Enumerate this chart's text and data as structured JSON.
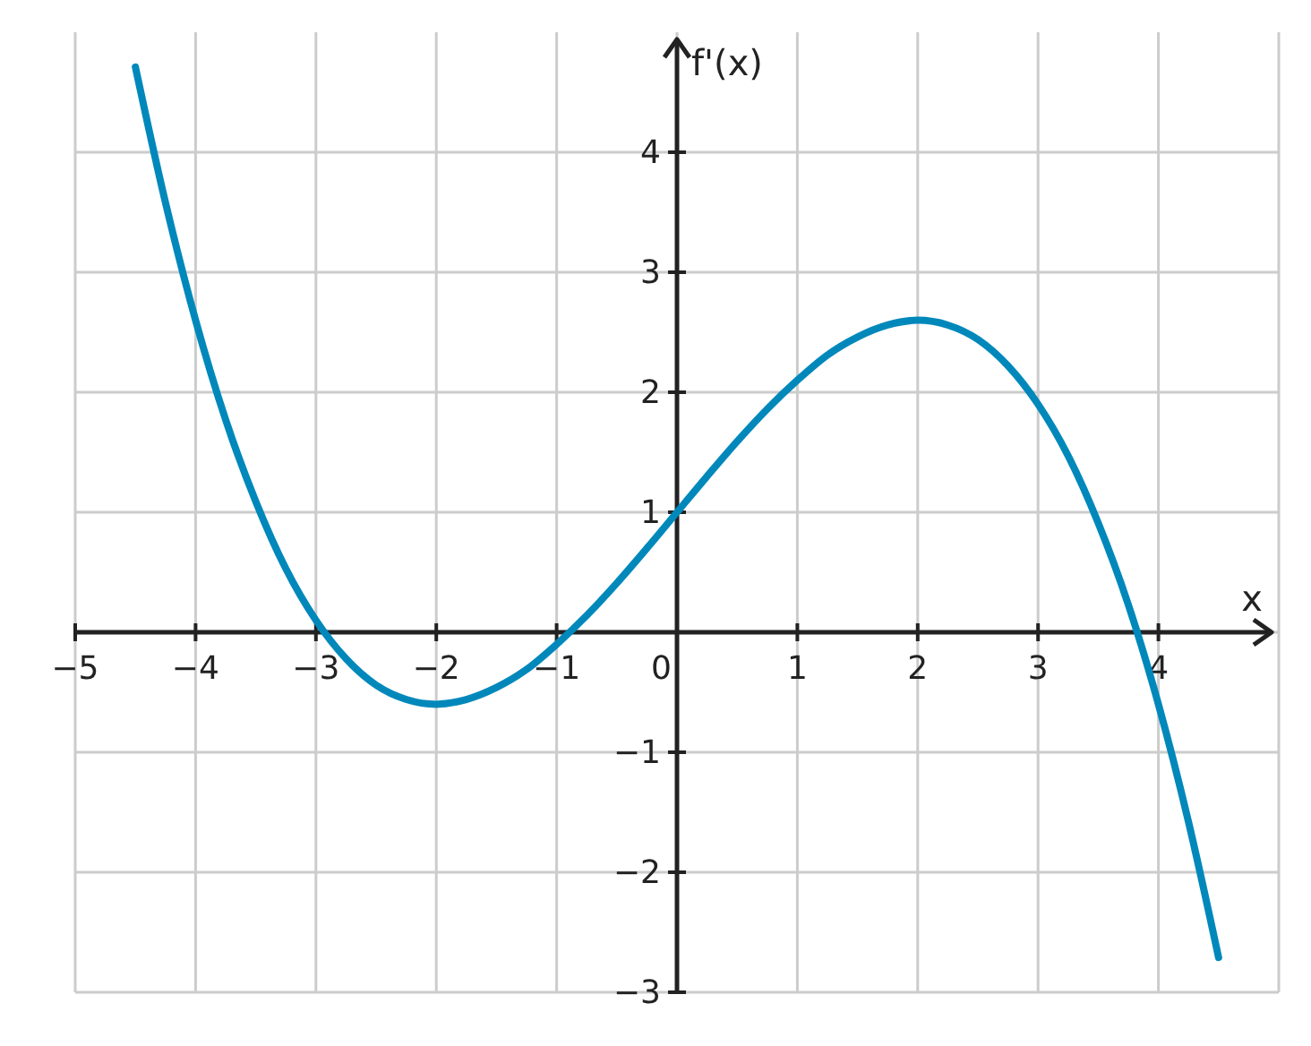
{
  "chart_data": {
    "type": "line",
    "xlabel": "x",
    "ylabel": "f'(x)",
    "x": [
      -4.5,
      -4.25,
      -4,
      -3.75,
      -3.5,
      -3.25,
      -3,
      -2.75,
      -2.5,
      -2.25,
      -2,
      -1.75,
      -1.5,
      -1.25,
      -1,
      -0.75,
      -0.5,
      -0.25,
      0,
      0.25,
      0.5,
      0.75,
      1,
      1.25,
      1.5,
      1.75,
      2,
      2.25,
      2.5,
      2.75,
      3,
      3.25,
      3.5,
      3.75,
      4,
      4.25,
      4.5
    ],
    "series": [
      {
        "color": "#0088bb",
        "values": [
          4.71,
          3.58,
          2.6,
          1.77,
          1.09,
          0.53,
          0.1,
          -0.22,
          -0.44,
          -0.56,
          -0.6,
          -0.56,
          -0.46,
          -0.31,
          -0.1,
          0.14,
          0.41,
          0.7,
          1,
          1.3,
          1.59,
          1.86,
          2.1,
          2.31,
          2.46,
          2.56,
          2.6,
          2.56,
          2.44,
          2.22,
          1.9,
          1.47,
          0.91,
          0.23,
          -0.6,
          -1.58,
          -2.71
        ]
      }
    ],
    "xlim": [
      -5,
      5
    ],
    "ylim": [
      -3,
      5
    ],
    "xticks": [
      {
        "value": -5,
        "label": "−5"
      },
      {
        "value": -4,
        "label": "−4"
      },
      {
        "value": -3,
        "label": "−3"
      },
      {
        "value": -2,
        "label": "−2"
      },
      {
        "value": -1,
        "label": "−1"
      },
      {
        "value": 0,
        "label": "0"
      },
      1,
      2,
      3,
      4
    ],
    "yticks": [
      {
        "value": -3,
        "label": "−3"
      },
      {
        "value": -2,
        "label": "−2"
      },
      {
        "value": -1,
        "label": "−1"
      },
      {
        "value": 0,
        "label": null
      },
      1,
      2,
      3,
      4
    ],
    "grid": true,
    "marker": "none",
    "line_style": "solid"
  }
}
